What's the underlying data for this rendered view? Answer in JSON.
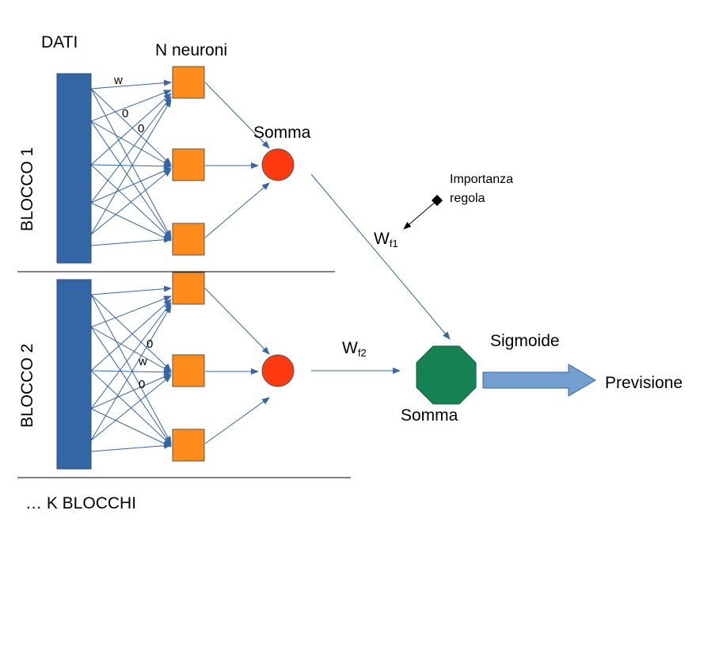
{
  "labels": {
    "dati": "DATI",
    "n_neuroni": "N neuroni",
    "somma_top": "Somma",
    "blocco1": "BLOCCO 1",
    "blocco2": "BLOCCO 2",
    "k_blocchi": "… K BLOCCHI",
    "importanza_line1": "Importanza",
    "importanza_line2": "regola",
    "wf1_main": "W",
    "wf1_sub": "f1",
    "wf2_main": "W",
    "wf2_sub": "f2",
    "sigmoide": "Sigmoide",
    "previsione": "Previsione",
    "somma_final": "Somma"
  },
  "block1_weights": [
    "w",
    "0",
    "0"
  ],
  "block2_weights": [
    "0",
    "w",
    "0"
  ],
  "colors": {
    "data_bar": "#3465a4",
    "neuron": "#ff8c1a",
    "sum_node": "#ff3a0f",
    "final_sum": "#168253",
    "output_arrow": "#729fcf",
    "connection": "#3465a4"
  }
}
